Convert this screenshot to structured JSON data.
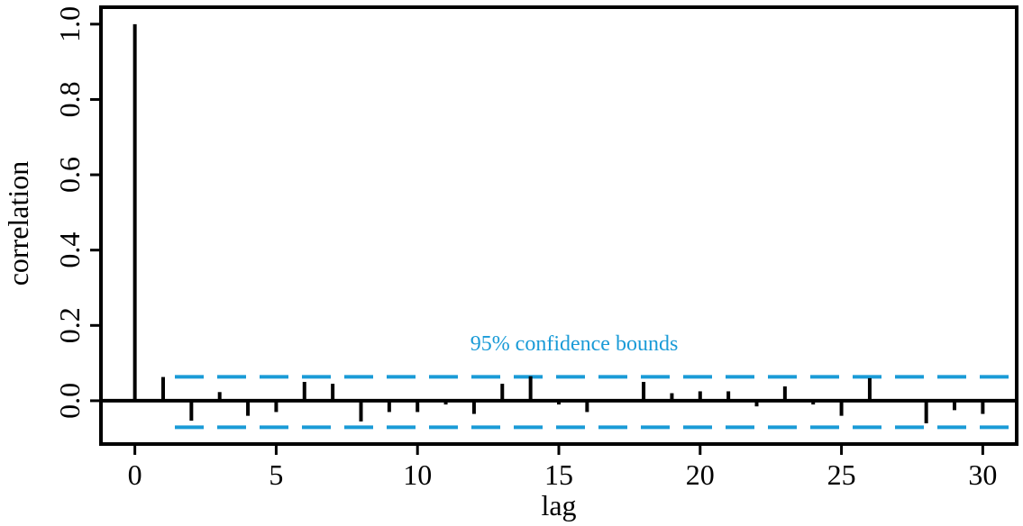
{
  "chart_data": {
    "type": "bar",
    "xlabel": "lag",
    "ylabel": "correlation",
    "xlim": [
      -1.2,
      31.2
    ],
    "ylim": [
      -0.115,
      1.045
    ],
    "x_ticks": [
      0,
      5,
      10,
      15,
      20,
      25,
      30
    ],
    "y_ticks": [
      0.0,
      0.2,
      0.4,
      0.6,
      0.8,
      1.0
    ],
    "x_tick_labels": [
      "0",
      "5",
      "10",
      "15",
      "20",
      "25",
      "30"
    ],
    "y_tick_labels": [
      "0.0",
      "0.2",
      "0.4",
      "0.6",
      "0.8",
      "1.0"
    ],
    "lags": [
      0,
      1,
      2,
      3,
      4,
      5,
      6,
      7,
      8,
      9,
      10,
      11,
      12,
      13,
      14,
      15,
      16,
      17,
      18,
      19,
      20,
      21,
      22,
      23,
      24,
      25,
      26,
      27,
      28,
      29,
      30
    ],
    "values": [
      1.0,
      0.063,
      -0.053,
      0.023,
      -0.04,
      -0.03,
      0.05,
      0.045,
      -0.055,
      -0.03,
      -0.03,
      -0.01,
      -0.035,
      0.045,
      0.065,
      -0.01,
      -0.03,
      0.0,
      0.05,
      0.02,
      0.025,
      0.025,
      -0.015,
      0.038,
      -0.01,
      -0.04,
      0.06,
      0.0,
      -0.06,
      -0.025,
      -0.035
    ],
    "confidence_bounds": [
      0.0635,
      -0.0705
    ],
    "annotation": "95% confidence bounds",
    "grid": false,
    "colors": {
      "bars": "#000000",
      "bounds": "#1a9bd7",
      "axis": "#000000"
    }
  }
}
